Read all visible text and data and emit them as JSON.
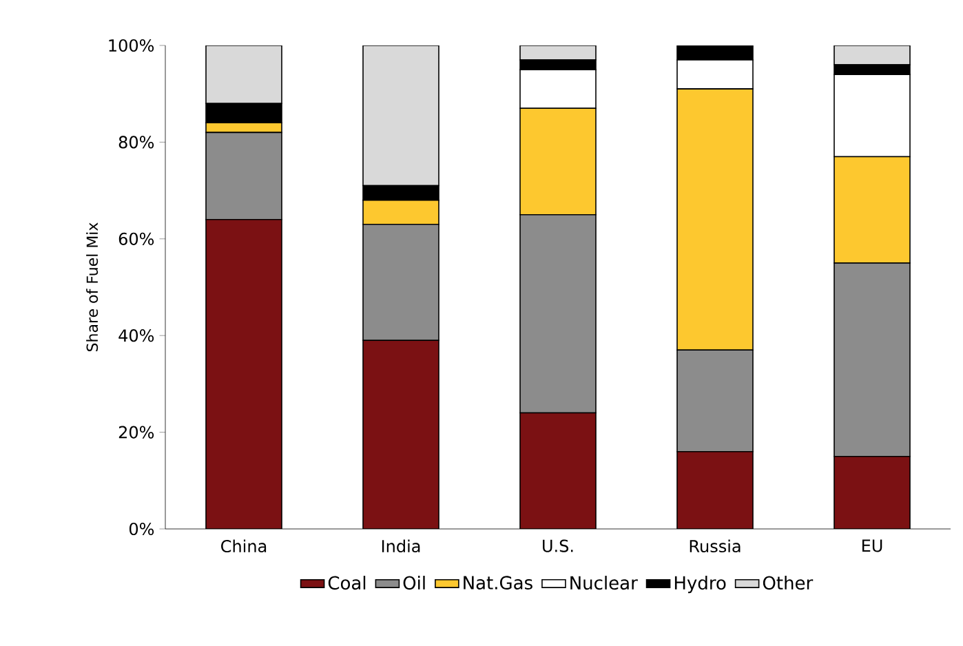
{
  "chart_data": {
    "type": "bar",
    "stacked": true,
    "ylabel": "Share of Fuel Mix",
    "categories": [
      "China",
      "India",
      "U.S.",
      "Russia",
      "EU"
    ],
    "series": [
      {
        "name": "Coal",
        "color": "#7b1113",
        "values": [
          64,
          39,
          24,
          16,
          15
        ]
      },
      {
        "name": "Oil",
        "color": "#8c8c8c",
        "values": [
          18,
          24,
          41,
          21,
          40
        ]
      },
      {
        "name": "Nat.Gas",
        "color": "#fdc82f",
        "values": [
          2,
          5,
          22,
          54,
          22
        ]
      },
      {
        "name": "Nuclear",
        "color": "#ffffff",
        "values": [
          0,
          0,
          8,
          6,
          17
        ]
      },
      {
        "name": "Hydro",
        "color": "#000000",
        "values": [
          4,
          3,
          2,
          3,
          2
        ]
      },
      {
        "name": "Other",
        "color": "#d9d9d9",
        "values": [
          12,
          29,
          3,
          0,
          4
        ]
      }
    ],
    "ylim": [
      0,
      100
    ],
    "yticks": [
      {
        "value": 0,
        "label": "0%"
      },
      {
        "value": 20,
        "label": "20%"
      },
      {
        "value": 40,
        "label": "40%"
      },
      {
        "value": 60,
        "label": "60%"
      },
      {
        "value": 80,
        "label": "80%"
      },
      {
        "value": 100,
        "label": "100%"
      }
    ],
    "legend": "bottom"
  }
}
